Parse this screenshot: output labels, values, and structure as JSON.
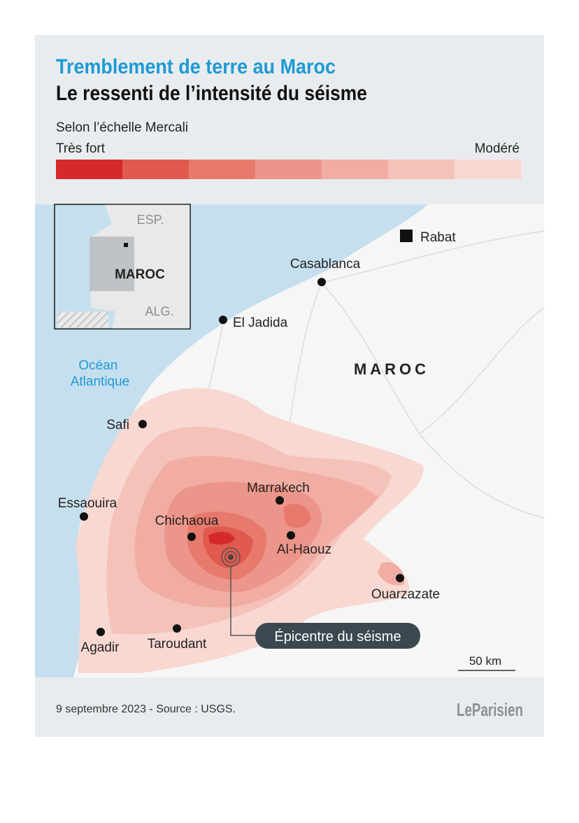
{
  "header": {
    "title": "Tremblement de terre au Maroc",
    "subtitle": "Le ressenti de l’intensité du séisme"
  },
  "legend": {
    "label": "Selon l’échelle Mercali",
    "high": "Très fort",
    "low": "Modéré",
    "colors": [
      "#d62a2a",
      "#e05a4e",
      "#e77a6c",
      "#ec958a",
      "#f1ada3",
      "#f4c2b9",
      "#f8d8d1"
    ]
  },
  "inset": {
    "labels": [
      "ESP.",
      "MAROC",
      "ALG."
    ]
  },
  "map": {
    "country": "MAROC",
    "ocean": [
      "Océan",
      "Atlantique"
    ],
    "capital": "Rabat",
    "cities": [
      "Casablanca",
      "El Jadida",
      "Safi",
      "Essaouira",
      "Marrakech",
      "Chichaoua",
      "Al-Haouz",
      "Ouarzazate",
      "Agadir",
      "Taroudant"
    ],
    "epicenter": "Épicentre du séisme",
    "scale": "50 km"
  },
  "footer": {
    "source": "9 septembre 2023 - Source : USGS.",
    "logo": "LeParisien"
  }
}
